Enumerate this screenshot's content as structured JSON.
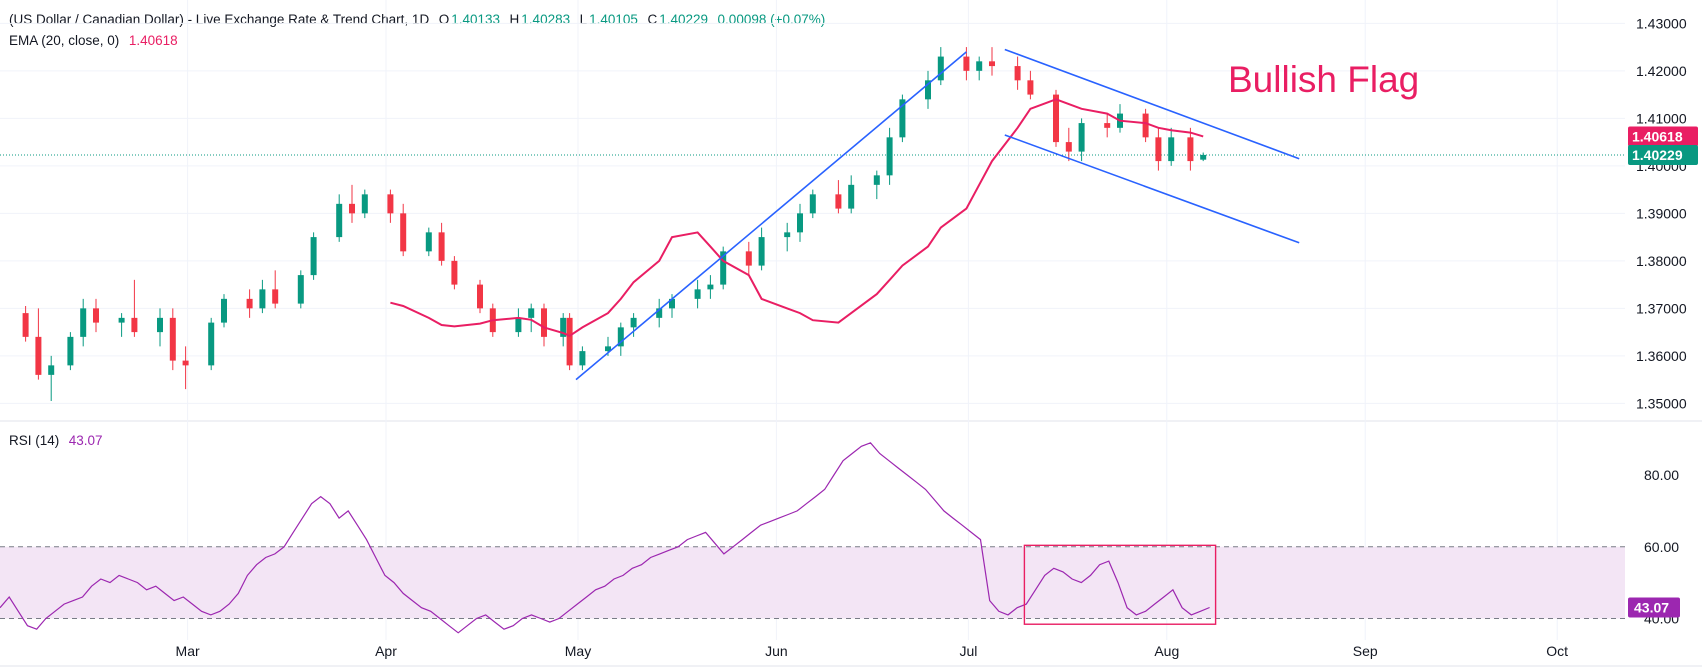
{
  "header": {
    "title": "(US Dollar / Canadian Dollar) - Live Exchange Rate & Trend Chart, 1D",
    "open_label": "O",
    "open": "1.40133",
    "high_label": "H",
    "high": "1.40283",
    "low_label": "L",
    "low": "1.40105",
    "close_label": "C",
    "close": "1.40229",
    "change": "0.00098 (+0.07%)"
  },
  "ema_legend": {
    "label": "EMA (20, close, 0)",
    "value": "1.40618"
  },
  "rsi_legend": {
    "label": "RSI (14)",
    "value": "43.07"
  },
  "annotation": {
    "text": "Bullish Flag"
  },
  "colors": {
    "up": "#089981",
    "down": "#f23645",
    "ema": "#e91e63",
    "trendline": "#2962ff",
    "rsi": "#9c27b0",
    "rsi_band": "#f3e5f5",
    "box": "#e91e63"
  },
  "chart_data": [
    {
      "type": "candlestick",
      "title": "(US Dollar / Canadian Dollar) - Live Exchange Rate & Trend Chart, 1D",
      "y_ticks": [
        "1.43000",
        "1.42000",
        "1.41000",
        "1.40000",
        "1.39000",
        "1.38000",
        "1.37000",
        "1.36000",
        "1.35000"
      ],
      "x_ticks": [
        "Mar",
        "Apr",
        "May",
        "Jun",
        "Jul",
        "Aug",
        "Sep",
        "Oct"
      ],
      "ylim": [
        1.3465,
        1.4307
      ],
      "last_price": "1.40229",
      "ema_last": "1.40618",
      "ema_closes": [
        1.3712,
        1.3705,
        1.368,
        1.3665,
        1.3662,
        1.3668,
        1.3675,
        1.368,
        1.3676,
        1.366,
        1.3648,
        1.3642,
        1.366,
        1.369,
        1.372,
        1.3755,
        1.38,
        1.385,
        1.386,
        1.383,
        1.38,
        1.377,
        1.372,
        1.37,
        1.369,
        1.3675,
        1.367,
        1.369,
        1.373,
        1.376,
        1.379,
        1.383,
        1.387,
        1.391,
        1.396,
        1.401,
        1.408,
        1.412,
        1.414,
        1.413,
        1.412,
        1.411,
        1.4095,
        1.409,
        1.408,
        1.4075,
        1.407,
        1.4062
      ],
      "candles": [
        {
          "x": "2024-02-05",
          "o": 1.369,
          "h": 1.3705,
          "l": 1.363,
          "c": 1.364
        },
        {
          "x": "2024-02-07",
          "o": 1.364,
          "h": 1.37,
          "l": 1.355,
          "c": 1.356
        },
        {
          "x": "2024-02-09",
          "o": 1.356,
          "h": 1.36,
          "l": 1.3505,
          "c": 1.358
        },
        {
          "x": "2024-02-12",
          "o": 1.358,
          "h": 1.365,
          "l": 1.357,
          "c": 1.364
        },
        {
          "x": "2024-02-14",
          "o": 1.364,
          "h": 1.372,
          "l": 1.362,
          "c": 1.37
        },
        {
          "x": "2024-02-16",
          "o": 1.37,
          "h": 1.372,
          "l": 1.365,
          "c": 1.367
        },
        {
          "x": "2024-02-20",
          "o": 1.367,
          "h": 1.369,
          "l": 1.364,
          "c": 1.368
        },
        {
          "x": "2024-02-22",
          "o": 1.368,
          "h": 1.376,
          "l": 1.364,
          "c": 1.365
        },
        {
          "x": "2024-02-26",
          "o": 1.365,
          "h": 1.37,
          "l": 1.362,
          "c": 1.368
        },
        {
          "x": "2024-02-28",
          "o": 1.368,
          "h": 1.37,
          "l": 1.357,
          "c": 1.359
        },
        {
          "x": "2024-03-01",
          "o": 1.359,
          "h": 1.362,
          "l": 1.353,
          "c": 1.358
        },
        {
          "x": "2024-03-05",
          "o": 1.358,
          "h": 1.368,
          "l": 1.357,
          "c": 1.367
        },
        {
          "x": "2024-03-07",
          "o": 1.367,
          "h": 1.373,
          "l": 1.366,
          "c": 1.372
        },
        {
          "x": "2024-03-11",
          "o": 1.372,
          "h": 1.374,
          "l": 1.368,
          "c": 1.37
        },
        {
          "x": "2024-03-13",
          "o": 1.37,
          "h": 1.376,
          "l": 1.369,
          "c": 1.374
        },
        {
          "x": "2024-03-15",
          "o": 1.374,
          "h": 1.378,
          "l": 1.37,
          "c": 1.371
        },
        {
          "x": "2024-03-19",
          "o": 1.371,
          "h": 1.378,
          "l": 1.37,
          "c": 1.377
        },
        {
          "x": "2024-03-21",
          "o": 1.377,
          "h": 1.386,
          "l": 1.376,
          "c": 1.385
        },
        {
          "x": "2024-03-25",
          "o": 1.385,
          "h": 1.394,
          "l": 1.384,
          "c": 1.392
        },
        {
          "x": "2024-03-27",
          "o": 1.392,
          "h": 1.396,
          "l": 1.388,
          "c": 1.39
        },
        {
          "x": "2024-03-29",
          "o": 1.39,
          "h": 1.395,
          "l": 1.389,
          "c": 1.394
        },
        {
          "x": "2024-04-02",
          "o": 1.394,
          "h": 1.395,
          "l": 1.388,
          "c": 1.39
        },
        {
          "x": "2024-04-04",
          "o": 1.39,
          "h": 1.392,
          "l": 1.381,
          "c": 1.382
        },
        {
          "x": "2024-04-08",
          "o": 1.382,
          "h": 1.387,
          "l": 1.381,
          "c": 1.386
        },
        {
          "x": "2024-04-10",
          "o": 1.386,
          "h": 1.388,
          "l": 1.379,
          "c": 1.38
        },
        {
          "x": "2024-04-12",
          "o": 1.38,
          "h": 1.381,
          "l": 1.374,
          "c": 1.375
        },
        {
          "x": "2024-04-16",
          "o": 1.375,
          "h": 1.376,
          "l": 1.369,
          "c": 1.37
        },
        {
          "x": "2024-04-18",
          "o": 1.37,
          "h": 1.371,
          "l": 1.364,
          "c": 1.365
        },
        {
          "x": "2024-04-22",
          "o": 1.365,
          "h": 1.37,
          "l": 1.364,
          "c": 1.368
        },
        {
          "x": "2024-04-24",
          "o": 1.368,
          "h": 1.371,
          "l": 1.365,
          "c": 1.37
        },
        {
          "x": "2024-04-26",
          "o": 1.37,
          "h": 1.371,
          "l": 1.362,
          "c": 1.364
        },
        {
          "x": "2024-04-29",
          "o": 1.364,
          "h": 1.369,
          "l": 1.362,
          "c": 1.368
        },
        {
          "x": "2024-04-30",
          "o": 1.368,
          "h": 1.369,
          "l": 1.357,
          "c": 1.358
        },
        {
          "x": "2024-05-02",
          "o": 1.358,
          "h": 1.362,
          "l": 1.357,
          "c": 1.361
        },
        {
          "x": "2024-05-06",
          "o": 1.361,
          "h": 1.364,
          "l": 1.36,
          "c": 1.362
        },
        {
          "x": "2024-05-08",
          "o": 1.362,
          "h": 1.367,
          "l": 1.36,
          "c": 1.366
        },
        {
          "x": "2024-05-10",
          "o": 1.366,
          "h": 1.369,
          "l": 1.364,
          "c": 1.368
        },
        {
          "x": "2024-05-14",
          "o": 1.368,
          "h": 1.372,
          "l": 1.366,
          "c": 1.37
        },
        {
          "x": "2024-05-16",
          "o": 1.37,
          "h": 1.373,
          "l": 1.368,
          "c": 1.372
        },
        {
          "x": "2024-05-20",
          "o": 1.372,
          "h": 1.376,
          "l": 1.37,
          "c": 1.374
        },
        {
          "x": "2024-05-22",
          "o": 1.374,
          "h": 1.377,
          "l": 1.372,
          "c": 1.375
        },
        {
          "x": "2024-05-24",
          "o": 1.375,
          "h": 1.383,
          "l": 1.374,
          "c": 1.382
        },
        {
          "x": "2024-05-28",
          "o": 1.382,
          "h": 1.384,
          "l": 1.377,
          "c": 1.379
        },
        {
          "x": "2024-05-30",
          "o": 1.379,
          "h": 1.387,
          "l": 1.378,
          "c": 1.385
        },
        {
          "x": "2024-06-03",
          "o": 1.385,
          "h": 1.388,
          "l": 1.382,
          "c": 1.386
        },
        {
          "x": "2024-06-05",
          "o": 1.386,
          "h": 1.392,
          "l": 1.384,
          "c": 1.39
        },
        {
          "x": "2024-06-07",
          "o": 1.39,
          "h": 1.395,
          "l": 1.389,
          "c": 1.394
        },
        {
          "x": "2024-06-11",
          "o": 1.394,
          "h": 1.397,
          "l": 1.39,
          "c": 1.391
        },
        {
          "x": "2024-06-13",
          "o": 1.391,
          "h": 1.398,
          "l": 1.39,
          "c": 1.396
        },
        {
          "x": "2024-06-17",
          "o": 1.396,
          "h": 1.399,
          "l": 1.393,
          "c": 1.398
        },
        {
          "x": "2024-06-19",
          "o": 1.398,
          "h": 1.408,
          "l": 1.396,
          "c": 1.406
        },
        {
          "x": "2024-06-21",
          "o": 1.406,
          "h": 1.415,
          "l": 1.405,
          "c": 1.414
        },
        {
          "x": "2024-06-25",
          "o": 1.414,
          "h": 1.42,
          "l": 1.412,
          "c": 1.418
        },
        {
          "x": "2024-06-27",
          "o": 1.418,
          "h": 1.425,
          "l": 1.417,
          "c": 1.423
        },
        {
          "x": "2024-07-01",
          "o": 1.423,
          "h": 1.425,
          "l": 1.418,
          "c": 1.42
        },
        {
          "x": "2024-07-03",
          "o": 1.42,
          "h": 1.423,
          "l": 1.418,
          "c": 1.422
        },
        {
          "x": "2024-07-05",
          "o": 1.422,
          "h": 1.425,
          "l": 1.419,
          "c": 1.421
        },
        {
          "x": "2024-07-09",
          "o": 1.421,
          "h": 1.423,
          "l": 1.416,
          "c": 1.418
        },
        {
          "x": "2024-07-11",
          "o": 1.418,
          "h": 1.42,
          "l": 1.414,
          "c": 1.415
        },
        {
          "x": "2024-07-15",
          "o": 1.415,
          "h": 1.416,
          "l": 1.404,
          "c": 1.405
        },
        {
          "x": "2024-07-17",
          "o": 1.405,
          "h": 1.408,
          "l": 1.401,
          "c": 1.403
        },
        {
          "x": "2024-07-19",
          "o": 1.403,
          "h": 1.41,
          "l": 1.401,
          "c": 1.409
        },
        {
          "x": "2024-07-23",
          "o": 1.409,
          "h": 1.411,
          "l": 1.406,
          "c": 1.408
        },
        {
          "x": "2024-07-25",
          "o": 1.408,
          "h": 1.413,
          "l": 1.407,
          "c": 1.411
        },
        {
          "x": "2024-07-29",
          "o": 1.411,
          "h": 1.412,
          "l": 1.405,
          "c": 1.406
        },
        {
          "x": "2024-07-31",
          "o": 1.406,
          "h": 1.408,
          "l": 1.399,
          "c": 1.401
        },
        {
          "x": "2024-08-02",
          "o": 1.401,
          "h": 1.408,
          "l": 1.4,
          "c": 1.406
        },
        {
          "x": "2024-08-05",
          "o": 1.406,
          "h": 1.408,
          "l": 1.399,
          "c": 1.401
        },
        {
          "x": "2024-08-07",
          "o": 1.4013,
          "h": 1.4028,
          "l": 1.401,
          "c": 1.4023
        }
      ],
      "trendlines": [
        {
          "name": "rising support",
          "from": {
            "x": "2024-05-01",
            "y": 1.355
          },
          "to": {
            "x": "2024-07-01",
            "y": 1.424
          }
        },
        {
          "name": "flag upper",
          "from": {
            "x": "2024-07-07",
            "y": 1.4245
          },
          "to": {
            "x": "2024-08-22",
            "y": 1.4015
          }
        },
        {
          "name": "flag lower",
          "from": {
            "x": "2024-07-07",
            "y": 1.4065
          },
          "to": {
            "x": "2024-08-22",
            "y": 1.3838
          }
        }
      ],
      "annotation": "Bullish Flag"
    },
    {
      "type": "line",
      "title": "RSI (14)",
      "last": 43.07,
      "y_ticks": [
        "80.00",
        "60.00",
        "43.07",
        "40.00"
      ],
      "band": [
        40,
        60
      ],
      "ylim": [
        34,
        92
      ],
      "values": [
        43,
        46,
        42,
        38,
        37,
        40,
        42,
        44,
        45,
        46,
        49,
        51,
        50,
        52,
        51,
        50,
        48,
        49,
        47,
        45,
        46,
        44,
        42,
        41,
        42,
        44,
        47,
        52,
        55,
        57,
        58,
        60,
        64,
        68,
        72,
        74,
        72,
        68,
        70,
        66,
        62,
        57,
        52,
        50,
        47,
        45,
        43,
        42,
        40,
        38,
        36,
        38,
        40,
        41,
        39,
        37,
        38,
        40,
        41,
        40,
        39,
        40,
        42,
        44,
        46,
        48,
        49,
        51,
        52,
        54,
        55,
        57,
        58,
        59,
        60,
        62,
        63,
        64,
        61,
        58,
        60,
        62,
        64,
        66,
        67,
        68,
        69,
        70,
        72,
        74,
        76,
        80,
        84,
        86,
        88,
        89,
        86,
        84,
        82,
        80,
        78,
        76,
        73,
        70,
        68,
        66,
        64,
        62,
        45,
        42,
        41,
        43,
        44,
        48,
        52,
        54,
        53,
        51,
        50,
        52,
        55,
        56,
        50,
        43,
        41,
        42,
        44,
        46,
        48,
        43,
        41,
        42,
        43.07
      ],
      "box": {
        "from": "2024-07-11",
        "to": "2024-08-08",
        "y_top": 60.4,
        "y_bottom": 38.4
      }
    }
  ]
}
